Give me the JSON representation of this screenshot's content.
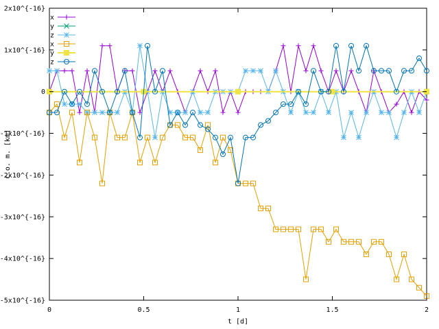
{
  "chart_data": {
    "type": "line",
    "title": "",
    "xlabel": "t [d]",
    "ylabel": "c.o. m. [km]",
    "xlim": [
      0,
      2
    ],
    "ylim": [
      -5e-16,
      2e-16
    ],
    "x_ticks": [
      {
        "v": 0,
        "label": "0"
      },
      {
        "v": 0.5,
        "label": "0.5"
      },
      {
        "v": 1,
        "label": "1"
      },
      {
        "v": 1.5,
        "label": "1.5"
      },
      {
        "v": 2,
        "label": "2"
      }
    ],
    "y_ticks": [
      {
        "v": 2e-16,
        "label": "2x10^{-16}"
      },
      {
        "v": 1e-16,
        "label": "1x10^{-16}"
      },
      {
        "v": 0,
        "label": "0"
      },
      {
        "v": -1e-16,
        "label": "-1x10^{-16}"
      },
      {
        "v": -2e-16,
        "label": "-2x10^{-16}"
      },
      {
        "v": -3e-16,
        "label": "-3x10^{-16}"
      },
      {
        "v": -4e-16,
        "label": "-4x10^{-16}"
      },
      {
        "v": -5e-16,
        "label": "-5x10^{-16}"
      }
    ],
    "grid": false,
    "legend_position": "top-left",
    "series": [
      {
        "name": "x",
        "color": "#9400d3",
        "marker": "plus",
        "panel": "top",
        "x": [
          0,
          0.04,
          0.08,
          0.12,
          0.16,
          0.2,
          0.24,
          0.28,
          0.32,
          0.36,
          0.4,
          0.44,
          0.48,
          0.52,
          0.56,
          0.6,
          0.64,
          0.68,
          0.72,
          0.76,
          0.8,
          0.84,
          0.88,
          0.92,
          0.96,
          1,
          1.04,
          1.08,
          1.12,
          1.16,
          1.2,
          1.24,
          1.28,
          1.32,
          1.36,
          1.4,
          1.44,
          1.48,
          1.52,
          1.56,
          1.6,
          1.64,
          1.68,
          1.72,
          1.76,
          1.8,
          1.84,
          1.88,
          1.92,
          1.96,
          2
        ],
        "y": [
          0,
          5e-17,
          5e-17,
          5e-17,
          -5e-17,
          5e-17,
          -5e-17,
          1.1e-16,
          1.1e-16,
          0,
          5e-17,
          5e-17,
          -5e-17,
          0,
          5e-17,
          0,
          5e-17,
          0,
          -5e-17,
          0,
          5e-17,
          0,
          5e-17,
          -5e-17,
          0,
          -5e-17,
          0,
          0,
          0,
          0,
          5e-17,
          1.1e-16,
          0,
          1.1e-16,
          5e-17,
          1.1e-16,
          5e-17,
          0,
          5e-17,
          0,
          5e-17,
          0,
          -5e-17,
          5e-17,
          0,
          -5e-17,
          -3e-17,
          0,
          -5e-17,
          0,
          -2e-17
        ]
      },
      {
        "name": "y",
        "color": "#009e73",
        "marker": "cross",
        "panel": "top",
        "x": [
          0,
          0.5,
          1,
          1.5,
          2
        ],
        "y": [
          0,
          0,
          0,
          0,
          0
        ]
      },
      {
        "name": "z",
        "color": "#56b4e9",
        "marker": "star",
        "panel": "top",
        "x": [
          0,
          0.04,
          0.08,
          0.12,
          0.16,
          0.2,
          0.24,
          0.28,
          0.32,
          0.36,
          0.4,
          0.44,
          0.48,
          0.52,
          0.56,
          0.6,
          0.64,
          0.68,
          0.72,
          0.76,
          0.8,
          0.84,
          0.88,
          0.92,
          0.96,
          1,
          1.04,
          1.08,
          1.12,
          1.16,
          1.2,
          1.24,
          1.28,
          1.32,
          1.36,
          1.4,
          1.44,
          1.48,
          1.52,
          1.56,
          1.6,
          1.64,
          1.68,
          1.72,
          1.76,
          1.8,
          1.84,
          1.88,
          1.92,
          1.96,
          2
        ],
        "y": [
          5e-17,
          5e-17,
          -3e-17,
          -3e-17,
          -3e-17,
          -5e-17,
          -5e-17,
          -5e-17,
          -5e-17,
          -5e-17,
          0,
          -5e-17,
          1.1e-16,
          0,
          -1.1e-16,
          0,
          -5e-17,
          -5e-17,
          -5e-17,
          0,
          -5e-17,
          -5e-17,
          0,
          0,
          0,
          0,
          5e-17,
          5e-17,
          5e-17,
          0,
          5e-17,
          0,
          -5e-17,
          0,
          -5e-17,
          -5e-17,
          0,
          -5e-17,
          0,
          -1.1e-16,
          -5e-17,
          -1.1e-16,
          -5e-17,
          0,
          -5e-17,
          -5e-17,
          -1.1e-16,
          -5e-17,
          0,
          -5e-17,
          0
        ]
      },
      {
        "name": "x",
        "color": "#e69f00",
        "marker": "square",
        "panel": "bottom",
        "x": [
          0,
          0.04,
          0.08,
          0.12,
          0.16,
          0.2,
          0.24,
          0.28,
          0.32,
          0.36,
          0.4,
          0.44,
          0.48,
          0.52,
          0.56,
          0.6,
          0.64,
          0.68,
          0.72,
          0.76,
          0.8,
          0.84,
          0.88,
          0.92,
          0.96,
          1,
          1.04,
          1.08,
          1.12,
          1.16,
          1.2,
          1.24,
          1.28,
          1.32,
          1.36,
          1.4,
          1.44,
          1.48,
          1.52,
          1.56,
          1.6,
          1.64,
          1.68,
          1.72,
          1.76,
          1.8,
          1.84,
          1.88,
          1.92,
          1.96,
          2
        ],
        "y": [
          -5e-17,
          -3e-17,
          -1.1e-16,
          -5e-17,
          -1.7e-16,
          -5e-17,
          -1.1e-16,
          -2.2e-16,
          -5e-17,
          -1.1e-16,
          -1.1e-16,
          -5e-17,
          -1.7e-16,
          -1.1e-16,
          -1.7e-16,
          -1.1e-16,
          -8e-17,
          -8e-17,
          -1.1e-16,
          -1.1e-16,
          -1.4e-16,
          -8e-17,
          -1.7e-16,
          -1.1e-16,
          -1.4e-16,
          -2.2e-16,
          -2.2e-16,
          -2.2e-16,
          -2.8e-16,
          -2.8e-16,
          -3.3e-16,
          -3.3e-16,
          -3.3e-16,
          -3.3e-16,
          -4.5e-16,
          -3.3e-16,
          -3.3e-16,
          -3.6e-16,
          -3.3e-16,
          -3.6e-16,
          -3.6e-16,
          -3.6e-16,
          -3.9e-16,
          -3.6e-16,
          -3.6e-16,
          -3.9e-16,
          -4.5e-16,
          -3.9e-16,
          -4.5e-16,
          -4.7e-16,
          -4.9e-16
        ]
      },
      {
        "name": "y",
        "color": "#f0e442",
        "marker": "filled-square",
        "panel": "bottom",
        "x": [
          0,
          0.5,
          1,
          1.5,
          2
        ],
        "y": [
          0,
          0,
          0,
          0,
          0
        ]
      },
      {
        "name": "z",
        "color": "#0072b2",
        "marker": "circle",
        "panel": "bottom",
        "x": [
          0,
          0.04,
          0.08,
          0.12,
          0.16,
          0.2,
          0.24,
          0.28,
          0.32,
          0.36,
          0.4,
          0.44,
          0.48,
          0.52,
          0.56,
          0.6,
          0.64,
          0.68,
          0.72,
          0.76,
          0.8,
          0.84,
          0.88,
          0.92,
          0.96,
          1,
          1.04,
          1.08,
          1.12,
          1.16,
          1.2,
          1.24,
          1.28,
          1.32,
          1.36,
          1.4,
          1.44,
          1.48,
          1.52,
          1.56,
          1.6,
          1.64,
          1.68,
          1.72,
          1.76,
          1.8,
          1.84,
          1.88,
          1.92,
          1.96,
          2
        ],
        "y": [
          -5e-17,
          -5e-17,
          0,
          -3e-17,
          0,
          -3e-17,
          5e-17,
          0,
          -5e-17,
          0,
          5e-17,
          -5e-17,
          -1.1e-16,
          1.1e-16,
          0,
          5e-17,
          -8e-17,
          -5e-17,
          -8e-17,
          -5e-17,
          -8e-17,
          -9e-17,
          -1.1e-16,
          -1.5e-16,
          -1.1e-16,
          -2.2e-16,
          -1.1e-16,
          -1.1e-16,
          -8e-17,
          -7e-17,
          -5e-17,
          -3e-17,
          -3e-17,
          0,
          -3e-17,
          5e-17,
          0,
          0,
          1.1e-16,
          0,
          1.1e-16,
          5e-17,
          1.1e-16,
          5e-17,
          5e-17,
          5e-17,
          0,
          5e-17,
          5e-17,
          8e-17,
          5e-17
        ]
      }
    ]
  }
}
